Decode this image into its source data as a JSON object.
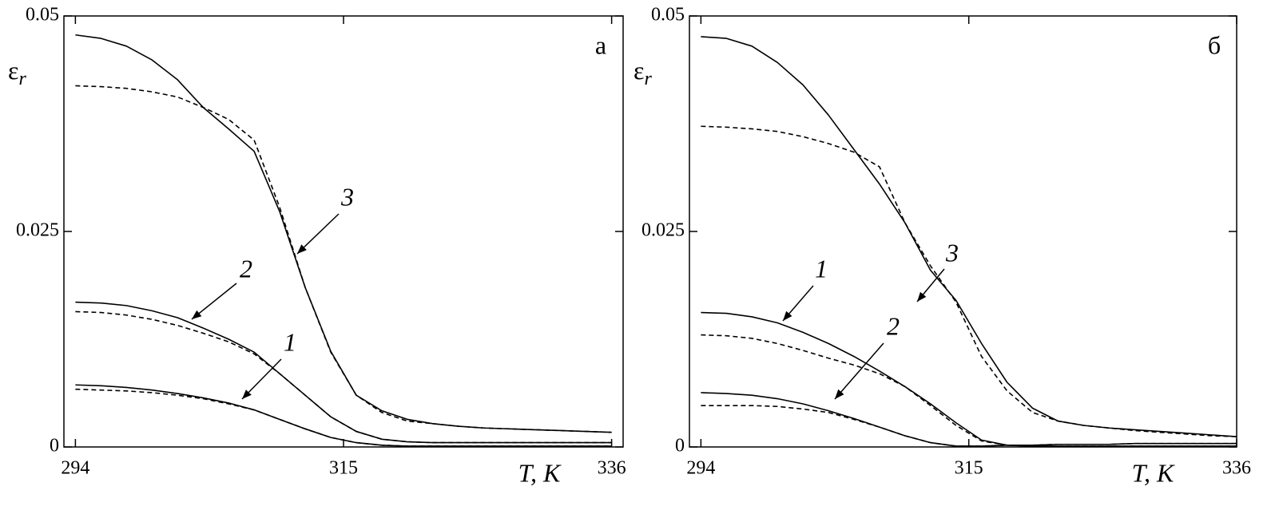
{
  "chart_data": [
    {
      "type": "line",
      "panel_label": "а",
      "ylabel": {
        "symbol": "ε",
        "subscript": "r"
      },
      "xlabel": "T, K",
      "xlim": [
        293.1,
        336.9
      ],
      "ylim": [
        0,
        0.05
      ],
      "xticks": [
        294,
        315,
        336
      ],
      "yticks": [
        0,
        0.025,
        0.05
      ],
      "x": [
        294,
        296,
        298,
        300,
        302,
        304,
        306,
        308,
        310,
        312,
        314,
        316,
        318,
        320,
        322,
        324,
        326,
        328,
        330,
        332,
        334,
        336
      ],
      "series": [
        {
          "name": "1",
          "style": "solid",
          "color": "#000",
          "values": [
            0.0072,
            0.0071,
            0.0069,
            0.0066,
            0.0062,
            0.0057,
            0.0051,
            0.0043,
            0.0032,
            0.0021,
            0.0011,
            0.0005,
            0.0002,
            0.0001,
            0.0001,
            0.0001,
            0.0001,
            0.0001,
            0.0001,
            0.0001,
            0.0001,
            0.0001
          ]
        },
        {
          "style": "dashed",
          "color": "#000",
          "values": [
            0.0067,
            0.0066,
            0.0065,
            0.0063,
            0.006,
            0.0056,
            0.005,
            0.0043,
            0.0032,
            0.0021,
            0.0011,
            0.0005,
            0.0002,
            0.0001,
            0.0001,
            0.0001,
            0.0001,
            0.0001,
            0.0001,
            0.0001,
            0.0001,
            0.0001
          ]
        },
        {
          "name": "2",
          "style": "solid",
          "color": "#000",
          "values": [
            0.0168,
            0.0167,
            0.0164,
            0.0158,
            0.015,
            0.0138,
            0.0125,
            0.011,
            0.0085,
            0.006,
            0.0035,
            0.0018,
            0.0009,
            0.0006,
            0.0005,
            0.0005,
            0.0005,
            0.0005,
            0.0005,
            0.0005,
            0.0005,
            0.0005
          ]
        },
        {
          "style": "dashed",
          "color": "#000",
          "values": [
            0.0157,
            0.0156,
            0.0153,
            0.0148,
            0.0141,
            0.0132,
            0.0122,
            0.0108,
            0.0085,
            0.006,
            0.0035,
            0.0018,
            0.0009,
            0.0006,
            0.0005,
            0.0005,
            0.0005,
            0.0005,
            0.0005,
            0.0005,
            0.0005,
            0.0005
          ]
        },
        {
          "name": "3",
          "style": "solid",
          "color": "#000",
          "values": [
            0.0478,
            0.0474,
            0.0465,
            0.0449,
            0.0426,
            0.0394,
            0.0369,
            0.0343,
            0.0273,
            0.0185,
            0.0111,
            0.006,
            0.0042,
            0.0032,
            0.0027,
            0.0024,
            0.0022,
            0.0021,
            0.002,
            0.0019,
            0.0018,
            0.0017
          ]
        },
        {
          "style": "dashed",
          "color": "#000",
          "values": [
            0.0419,
            0.0418,
            0.0416,
            0.0412,
            0.0406,
            0.0394,
            0.038,
            0.0356,
            0.0278,
            0.0185,
            0.011,
            0.006,
            0.004,
            0.003,
            0.0027,
            0.0024,
            0.0022,
            0.0021,
            0.002,
            0.0019,
            0.0018,
            0.0017
          ]
        }
      ]
    },
    {
      "type": "line",
      "panel_label": "б",
      "ylabel": {
        "symbol": "ε",
        "subscript": "r"
      },
      "xlabel": "T, K",
      "xlim": [
        293.1,
        336
      ],
      "ylim": [
        0,
        0.05
      ],
      "xticks": [
        294,
        315,
        336
      ],
      "yticks": [
        0,
        0.025,
        0.05
      ],
      "x": [
        294,
        296,
        298,
        300,
        302,
        304,
        306,
        308,
        310,
        312,
        314,
        316,
        318,
        320,
        322,
        324,
        326,
        328,
        330,
        332,
        334,
        336
      ],
      "series": [
        {
          "name": "1",
          "style": "solid",
          "color": "#000",
          "values": [
            0.0156,
            0.0155,
            0.0151,
            0.0144,
            0.0133,
            0.012,
            0.0105,
            0.0088,
            0.007,
            0.005,
            0.0028,
            0.0008,
            0.0002,
            0.0001,
            0.0001,
            0.0001,
            0.0001,
            0.0001,
            0.0001,
            0.0001,
            0.0001,
            0.0001
          ]
        },
        {
          "style": "dashed",
          "color": "#000",
          "values": [
            0.013,
            0.0129,
            0.0126,
            0.012,
            0.0112,
            0.0103,
            0.0095,
            0.0085,
            0.007,
            0.0048,
            0.0025,
            0.0007,
            0.0002,
            0.0001,
            0.0001,
            0.0001,
            0.0001,
            0.0001,
            0.0001,
            0.0001,
            0.0001,
            0.0001
          ]
        },
        {
          "name": "2",
          "style": "solid",
          "color": "#000",
          "values": [
            0.0063,
            0.0062,
            0.006,
            0.0056,
            0.005,
            0.0042,
            0.0033,
            0.0023,
            0.0013,
            0.0005,
            0.0001,
            0.0001,
            0.0002,
            0.0002,
            0.0003,
            0.0003,
            0.0003,
            0.0004,
            0.0004,
            0.0004,
            0.0004,
            0.0004
          ]
        },
        {
          "style": "dashed",
          "color": "#000",
          "values": [
            0.0048,
            0.0048,
            0.0048,
            0.0047,
            0.0044,
            0.004,
            0.0032,
            0.0023,
            0.0013,
            0.0005,
            0.0001,
            0.0001,
            0.0002,
            0.0002,
            0.0003,
            0.0003,
            0.0003,
            0.0004,
            0.0004,
            0.0004,
            0.0004,
            0.0004
          ]
        },
        {
          "name": "3",
          "style": "solid",
          "color": "#000",
          "values": [
            0.0476,
            0.0474,
            0.0465,
            0.0446,
            0.042,
            0.0385,
            0.0345,
            0.0305,
            0.026,
            0.0205,
            0.017,
            0.012,
            0.0075,
            0.0045,
            0.003,
            0.0025,
            0.0022,
            0.002,
            0.0018,
            0.0016,
            0.0014,
            0.0012
          ]
        },
        {
          "style": "dashed",
          "color": "#000",
          "values": [
            0.0372,
            0.0371,
            0.0369,
            0.0366,
            0.036,
            0.0352,
            0.0342,
            0.0325,
            0.026,
            0.021,
            0.0168,
            0.0105,
            0.0065,
            0.004,
            0.003,
            0.0025,
            0.0022,
            0.0019,
            0.0017,
            0.0015,
            0.0013,
            0.0012
          ]
        }
      ]
    }
  ]
}
